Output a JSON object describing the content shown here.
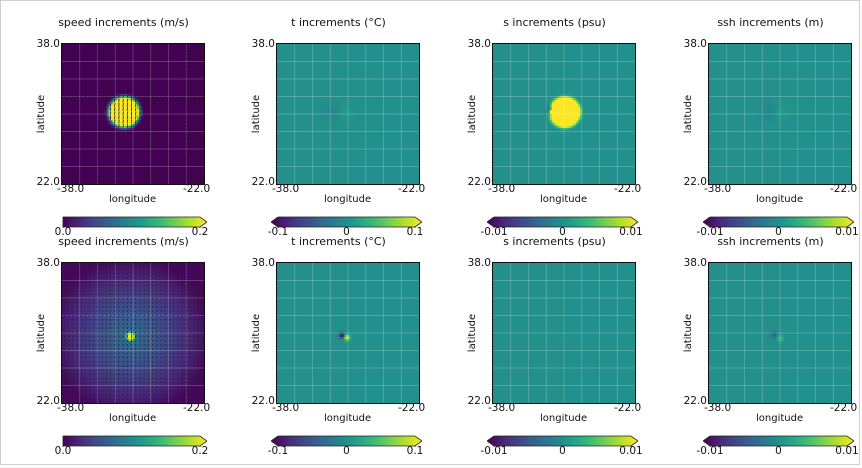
{
  "colors": {
    "cmap": "viridis",
    "background": "#ffffff",
    "neutral_field": "#2a9d8c",
    "speed_field": "#3b2667",
    "accent": "#fde725"
  },
  "chart_data": [
    {
      "type": "heatmap",
      "row": 1,
      "col": 1,
      "title": "speed increments (m/s)",
      "xlabel": "longitude",
      "ylabel": "latitude",
      "xtick_left": "-38.0",
      "xtick_right": "-22.0",
      "ytick_top": "38.0",
      "ytick_bottom": "22.0",
      "xlim": [
        -38.0,
        -22.0
      ],
      "ylim": [
        22.0,
        38.0
      ],
      "clim": [
        0.0,
        0.2
      ],
      "colorbar_ticks": [
        "0.0",
        "0.2"
      ],
      "colorbar_tick_values": [
        0.0,
        0.2
      ],
      "grid": true,
      "vectors": true,
      "field": {
        "kind": "speed_blob",
        "center": [
          -31.0,
          30.2
        ],
        "radius_deg": 1.5,
        "peak": 0.2,
        "background": 0.0
      }
    },
    {
      "type": "heatmap",
      "row": 1,
      "col": 2,
      "title": "t increments (°C)",
      "xlabel": "longitude",
      "ylabel": "latitude",
      "xtick_left": "-38.0",
      "xtick_right": "-22.0",
      "ytick_top": "38.0",
      "ytick_bottom": "22.0",
      "xlim": [
        -38.0,
        -22.0
      ],
      "ylim": [
        22.0,
        38.0
      ],
      "clim": [
        -0.1,
        0.1
      ],
      "colorbar_ticks": [
        "-0.1",
        "0",
        "0.1"
      ],
      "colorbar_tick_values": [
        -0.1,
        0,
        0.1
      ],
      "grid": true,
      "field": {
        "kind": "faint_dipole",
        "center": [
          -31.0,
          30.2
        ],
        "amplitude": 0.01
      }
    },
    {
      "type": "heatmap",
      "row": 1,
      "col": 3,
      "title": "s increments (psu)",
      "xlabel": "longitude",
      "ylabel": "latitude",
      "xtick_left": "-38.0",
      "xtick_right": "-22.0",
      "ytick_top": "38.0",
      "ytick_bottom": "22.0",
      "xlim": [
        -38.0,
        -22.0
      ],
      "ylim": [
        22.0,
        38.0
      ],
      "clim": [
        -0.01,
        0.01
      ],
      "colorbar_ticks": [
        "-0.01",
        "0",
        "0.01"
      ],
      "colorbar_tick_values": [
        -0.01,
        0,
        0.01
      ],
      "grid": true,
      "field": {
        "kind": "salinity_blob",
        "center": [
          -29.9,
          30.2
        ],
        "radius_deg": 1.6,
        "peak": 0.01
      }
    },
    {
      "type": "heatmap",
      "row": 1,
      "col": 4,
      "title": "ssh increments (m)",
      "xlabel": "longitude",
      "ylabel": "latitude",
      "xtick_left": "-38.0",
      "xtick_right": "-22.0",
      "ytick_top": "38.0",
      "ytick_bottom": "22.0",
      "xlim": [
        -38.0,
        -22.0
      ],
      "ylim": [
        22.0,
        38.0
      ],
      "clim": [
        -0.01,
        0.01
      ],
      "colorbar_ticks": [
        "-0.01",
        "0",
        "0.01"
      ],
      "colorbar_tick_values": [
        -0.01,
        0,
        0.01
      ],
      "grid": true,
      "field": {
        "kind": "faint_dipole",
        "center": [
          -30.5,
          30.2
        ],
        "amplitude": 0.001
      }
    },
    {
      "type": "heatmap",
      "row": 2,
      "col": 1,
      "title": "speed increments (m/s)",
      "xlabel": "longitude",
      "ylabel": "latitude",
      "xtick_left": "-38.0",
      "xtick_right": "-22.0",
      "ytick_top": "38.0",
      "ytick_bottom": "22.0",
      "xlim": [
        -38.0,
        -22.0
      ],
      "ylim": [
        22.0,
        38.0
      ],
      "clim": [
        0.0,
        0.2
      ],
      "colorbar_ticks": [
        "0.0",
        "0.2"
      ],
      "colorbar_tick_values": [
        0.0,
        0.2
      ],
      "grid": true,
      "vectors": true,
      "field": {
        "kind": "speed_wide",
        "center": [
          -30.3,
          29.6
        ],
        "radius_deg": 0.6,
        "halo_radius_deg": 9.0,
        "peak": 0.2,
        "halo": 0.07
      }
    },
    {
      "type": "heatmap",
      "row": 2,
      "col": 2,
      "title": "t increments (°C)",
      "xlabel": "longitude",
      "ylabel": "latitude",
      "xtick_left": "-38.0",
      "xtick_right": "-22.0",
      "ytick_top": "38.0",
      "ytick_bottom": "22.0",
      "xlim": [
        -38.0,
        -22.0
      ],
      "ylim": [
        22.0,
        38.0
      ],
      "clim": [
        -0.1,
        0.1
      ],
      "colorbar_ticks": [
        "-0.1",
        "0",
        "0.1"
      ],
      "colorbar_tick_values": [
        -0.1,
        0,
        0.1
      ],
      "grid": true,
      "field": {
        "kind": "strong_dipole",
        "center": [
          -30.4,
          29.6
        ],
        "amplitude": 0.1
      }
    },
    {
      "type": "heatmap",
      "row": 2,
      "col": 3,
      "title": "s increments (psu)",
      "xlabel": "longitude",
      "ylabel": "latitude",
      "xtick_left": "-38.0",
      "xtick_right": "-22.0",
      "ytick_top": "38.0",
      "ytick_bottom": "22.0",
      "xlim": [
        -38.0,
        -22.0
      ],
      "ylim": [
        22.0,
        38.0
      ],
      "clim": [
        -0.01,
        0.01
      ],
      "colorbar_ticks": [
        "-0.01",
        "0",
        "0.01"
      ],
      "colorbar_tick_values": [
        -0.01,
        0,
        0.01
      ],
      "grid": true,
      "field": {
        "kind": "point",
        "center": [
          -30.0,
          29.6
        ],
        "amplitude": -0.005
      }
    },
    {
      "type": "heatmap",
      "row": 2,
      "col": 4,
      "title": "ssh increments (m)",
      "xlabel": "longitude",
      "ylabel": "latitude",
      "xtick_left": "-38.0",
      "xtick_right": "-22.0",
      "ytick_top": "38.0",
      "ytick_bottom": "22.0",
      "xlim": [
        -38.0,
        -22.0
      ],
      "ylim": [
        22.0,
        38.0
      ],
      "clim": [
        -0.01,
        0.01
      ],
      "colorbar_ticks": [
        "-0.01",
        "0",
        "0.01"
      ],
      "colorbar_tick_values": [
        -0.01,
        0,
        0.01
      ],
      "grid": true,
      "field": {
        "kind": "medium_dipole",
        "center": [
          -30.3,
          29.6
        ],
        "amplitude": 0.004
      }
    }
  ]
}
